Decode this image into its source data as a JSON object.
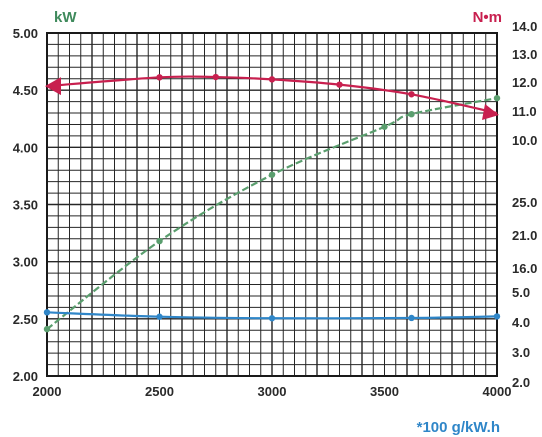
{
  "chart_data": {
    "type": "line",
    "x_ticks": [
      "2000",
      "2500",
      "3000",
      "3500",
      "4000"
    ],
    "xlim": [
      2000,
      4000
    ],
    "left_axis": {
      "unit": "kW",
      "ticks": [
        "2.00",
        "2.50",
        "3.00",
        "3.50",
        "4.00",
        "4.50",
        "5.00"
      ],
      "ylim": [
        2.0,
        5.0
      ]
    },
    "right_axis_upper": {
      "unit": "N•m",
      "ticks": [
        "10.0",
        "11.0",
        "12.0",
        "13.0",
        "14.0"
      ],
      "ylim": [
        10.0,
        14.0
      ]
    },
    "right_axis_lower": {
      "unit": "*100 g/kW.h",
      "ticks": [
        "2.0",
        "3.0",
        "4.0",
        "5.0"
      ],
      "ylim": [
        2.0,
        5.0
      ]
    },
    "right_axis_middle": {
      "ticks": [
        "16.0",
        "21.0",
        "25.0"
      ]
    },
    "grid": true,
    "series": [
      {
        "color": "#5a9e6e",
        "axis": "left_axis",
        "x": [
          2000,
          2500,
          3000,
          3500,
          3620,
          4000
        ],
        "y": [
          2.41,
          3.18,
          3.76,
          4.18,
          4.29,
          4.43
        ]
      },
      {
        "color": "#c8204f",
        "axis": "right_axis_upper",
        "x": [
          2000,
          2500,
          2750,
          3000,
          3300,
          3620,
          4000
        ],
        "y": [
          11.74,
          12.04,
          12.05,
          11.97,
          11.79,
          11.46,
          10.82
        ]
      },
      {
        "color": "#2f86c8",
        "axis": "right_axis_lower",
        "x": [
          2000,
          2500,
          3000,
          3620,
          4000
        ],
        "y": [
          4.16,
          4.02,
          3.97,
          3.98,
          4.03
        ]
      }
    ]
  }
}
